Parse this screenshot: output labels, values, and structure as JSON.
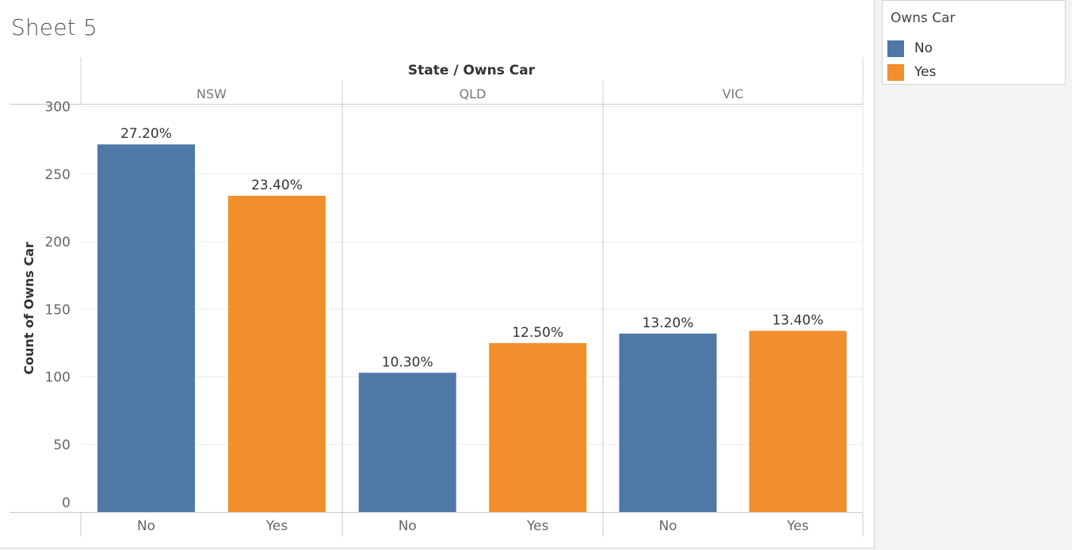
{
  "sheet": {
    "title": "Sheet 5"
  },
  "legend": {
    "title": "Owns Car",
    "items": [
      {
        "label": "No",
        "color": "#4e79a7"
      },
      {
        "label": "Yes",
        "color": "#f28e2b"
      }
    ]
  },
  "chart_data": {
    "type": "bar",
    "title": "",
    "header": "State / Owns Car",
    "ylabel": "Count of Owns Car",
    "xlabel": "",
    "ylim": [
      0,
      300
    ],
    "yticks": [
      0,
      50,
      100,
      150,
      200,
      250,
      300
    ],
    "grid": true,
    "legend_position": "right",
    "groups": [
      {
        "name": "NSW",
        "bars": [
          {
            "category": "No",
            "value": 272,
            "label": "27.20%",
            "color": "#4e79a7"
          },
          {
            "category": "Yes",
            "value": 234,
            "label": "23.40%",
            "color": "#f28e2b"
          }
        ]
      },
      {
        "name": "QLD",
        "bars": [
          {
            "category": "No",
            "value": 103,
            "label": "10.30%",
            "color": "#4e79a7"
          },
          {
            "category": "Yes",
            "value": 125,
            "label": "12.50%",
            "color": "#f28e2b"
          }
        ]
      },
      {
        "name": "VIC",
        "bars": [
          {
            "category": "No",
            "value": 132,
            "label": "13.20%",
            "color": "#4e79a7"
          },
          {
            "category": "Yes",
            "value": 134,
            "label": "13.40%",
            "color": "#f28e2b"
          }
        ]
      }
    ]
  }
}
